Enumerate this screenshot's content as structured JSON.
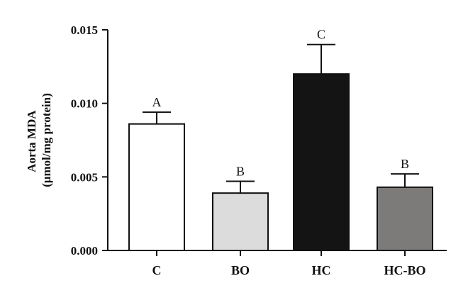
{
  "chart_data": {
    "type": "bar",
    "title": "",
    "xlabel": "",
    "ylabel_line1": "Aorta MDA",
    "ylabel_line2": "(μmol/mg protein)",
    "ylim": [
      0,
      0.015
    ],
    "yticks": [
      0.0,
      0.005,
      0.01,
      0.015
    ],
    "ytick_labels": [
      "0.000",
      "0.005",
      "0.010",
      "0.015"
    ],
    "grid": false,
    "categories": [
      "C",
      "BO",
      "HC",
      "HC-BO"
    ],
    "values": [
      0.0086,
      0.0039,
      0.012,
      0.0043
    ],
    "errors": [
      0.0008,
      0.0008,
      0.002,
      0.0009
    ],
    "significance_letters": [
      "A",
      "B",
      "C",
      "B"
    ],
    "bar_colors": [
      "#ffffff",
      "#dcdcdc",
      "#141414",
      "#7d7a7a"
    ],
    "axis_color": "#111111"
  }
}
